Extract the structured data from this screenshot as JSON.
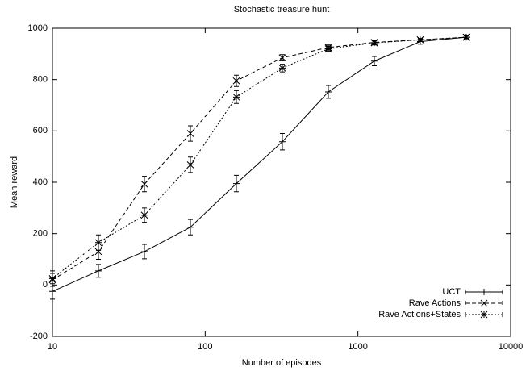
{
  "chart_data": {
    "type": "line",
    "title": "Stochastic treasure hunt",
    "xlabel": "Number of episodes",
    "ylabel": "Mean reward",
    "xscale": "log",
    "x": [
      10,
      20,
      40,
      80,
      160,
      320,
      640,
      1280,
      2560,
      5120
    ],
    "xlim": [
      10,
      10000
    ],
    "xticks": [
      10,
      100,
      1000,
      10000
    ],
    "ylim": [
      -200,
      1000
    ],
    "yticks": [
      -200,
      0,
      200,
      400,
      600,
      800,
      1000
    ],
    "legend": "lower right",
    "series": [
      {
        "name": "UCT",
        "color": "#000000",
        "dash": "solid",
        "marker": "plus",
        "values": [
          -25,
          55,
          130,
          225,
          395,
          558,
          752,
          872,
          948,
          965
        ],
        "errors": [
          30,
          25,
          28,
          30,
          32,
          32,
          25,
          18,
          10,
          5
        ]
      },
      {
        "name": "Rave Actions",
        "color": "#000000",
        "dash": "dashed",
        "marker": "cross",
        "values": [
          20,
          130,
          393,
          590,
          795,
          885,
          925,
          945,
          955,
          965
        ],
        "errors": [
          25,
          30,
          30,
          30,
          22,
          12,
          10,
          8,
          5,
          5
        ]
      },
      {
        "name": "Rave Actions+States",
        "color": "#000000",
        "dash": "dotted",
        "marker": "star",
        "values": [
          25,
          165,
          272,
          468,
          732,
          845,
          920,
          943,
          955,
          965
        ],
        "errors": [
          30,
          30,
          28,
          30,
          25,
          15,
          10,
          8,
          5,
          5
        ]
      }
    ]
  }
}
